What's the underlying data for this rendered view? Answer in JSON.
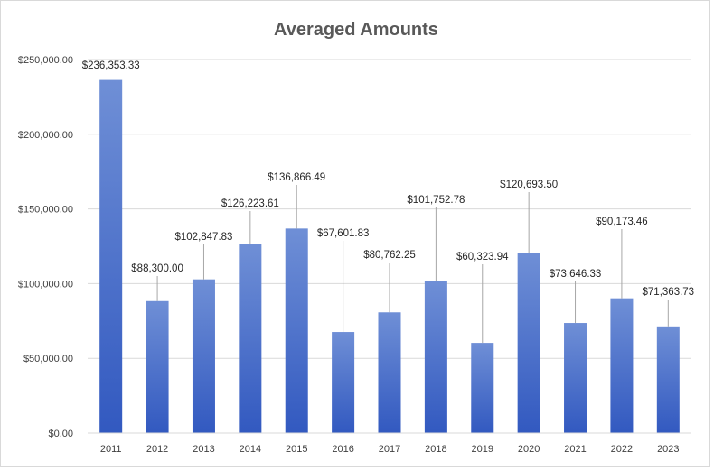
{
  "chart_data": {
    "type": "bar",
    "title": "Averaged Amounts",
    "xlabel": "",
    "ylabel": "",
    "categories": [
      "2011",
      "2012",
      "2013",
      "2014",
      "2015",
      "2016",
      "2017",
      "2018",
      "2019",
      "2020",
      "2021",
      "2022",
      "2023"
    ],
    "values": [
      236353.33,
      88300.0,
      102847.83,
      126223.61,
      136866.49,
      67601.83,
      80762.25,
      101752.78,
      60323.94,
      120693.5,
      73646.33,
      90173.46,
      71363.73
    ],
    "data_labels": [
      "$236,353.33",
      "$88,300.00",
      "$102,847.83",
      "$126,223.61",
      "$136,866.49",
      "$67,601.83",
      "$80,762.25",
      "$101,752.78",
      "$60,323.94",
      "$120,693.50",
      "$73,646.33",
      "$90,173.46",
      "$71,363.73"
    ],
    "yticks": [
      0,
      50000,
      100000,
      150000,
      200000,
      250000
    ],
    "ytick_labels": [
      "$0.00",
      "$50,000.00",
      "$100,000.00",
      "$150,000.00",
      "$200,000.00",
      "$250,000.00"
    ],
    "ylim": [
      0,
      250000
    ],
    "grid": true,
    "legend": "none",
    "colors": {
      "bar_top": "#6f8fd6",
      "bar_bottom": "#3259c0",
      "grid": "#d9d9d9",
      "leader": "#a6a6a6"
    }
  }
}
